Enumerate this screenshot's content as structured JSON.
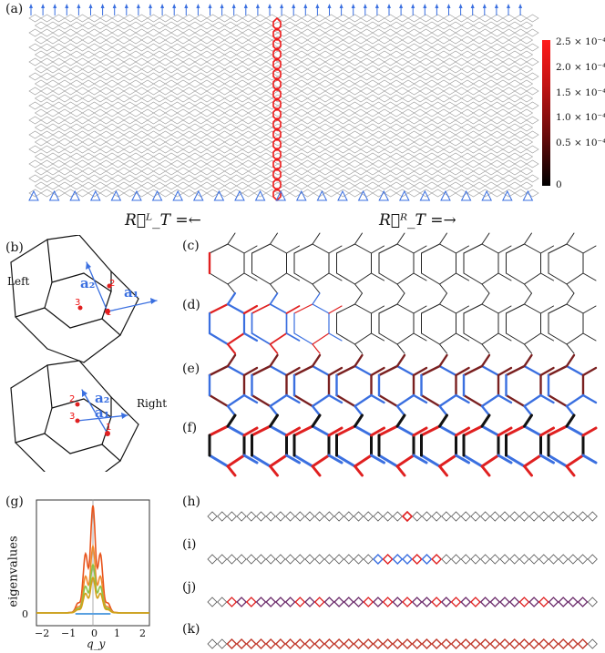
{
  "panel_a": {
    "label": "(a)",
    "colorbar_ticks": [
      "2.5 × 10⁻⁴",
      "2.0 × 10⁻⁴",
      "1.5 × 10⁻⁴",
      "1.0 × 10⁻⁴",
      "0.5 × 10⁻⁴",
      "0"
    ],
    "left_eq": "R⃗ᴸ_T =←",
    "right_eq": "R⃗ᴿ_T =→"
  },
  "panel_b": {
    "label": "(b)",
    "left_text": "Left",
    "right_text": "Right",
    "vec_a1": "a₁",
    "vec_a2": "a₂",
    "site_labels": [
      "1",
      "2",
      "3"
    ]
  },
  "panel_labels": {
    "c": "(c)",
    "d": "(d)",
    "e": "(e)",
    "f": "(f)",
    "g": "(g)",
    "h": "(h)",
    "i": "(i)",
    "j": "(j)",
    "k": "(k)"
  },
  "panel_g": {
    "ylabel": "eigenvalues",
    "xlabel": "q_y",
    "x_ticks": [
      "−2",
      "−1",
      "0",
      "1",
      "2"
    ],
    "y_tick": "0"
  },
  "colors": {
    "blue": "#3a6fe0",
    "red": "#e02020",
    "dark": "#222222",
    "lattice": "#9a9a9a"
  }
}
